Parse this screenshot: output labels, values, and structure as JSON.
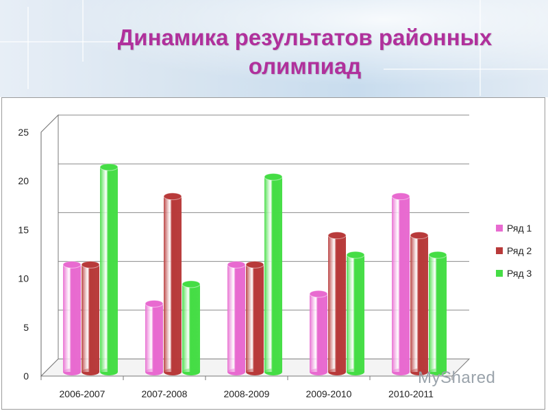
{
  "slide": {
    "title_line1": "Динамика результатов районных",
    "title_line2": "олимпиад",
    "title_color": "#b0309c",
    "watermark": "MyShared"
  },
  "chart_data": {
    "type": "bar",
    "categories": [
      "2006-2007",
      "2007-2008",
      "2008-2009",
      "2009-2010",
      "2010-2011"
    ],
    "series": [
      {
        "name": "Ряд 1",
        "values": [
          11,
          7,
          11,
          8,
          18
        ],
        "color": "#e86ad0"
      },
      {
        "name": "Ряд 2",
        "values": [
          11,
          18,
          11,
          14,
          14
        ],
        "color": "#b83a3a"
      },
      {
        "name": "Ряд 3",
        "values": [
          21,
          9,
          20,
          12,
          12
        ],
        "color": "#45dd45"
      }
    ],
    "yticks": [
      0,
      5,
      10,
      15,
      20,
      25
    ],
    "ylim": [
      0,
      25
    ],
    "grid": true,
    "legend": "right",
    "style": "3d-cylinder"
  }
}
